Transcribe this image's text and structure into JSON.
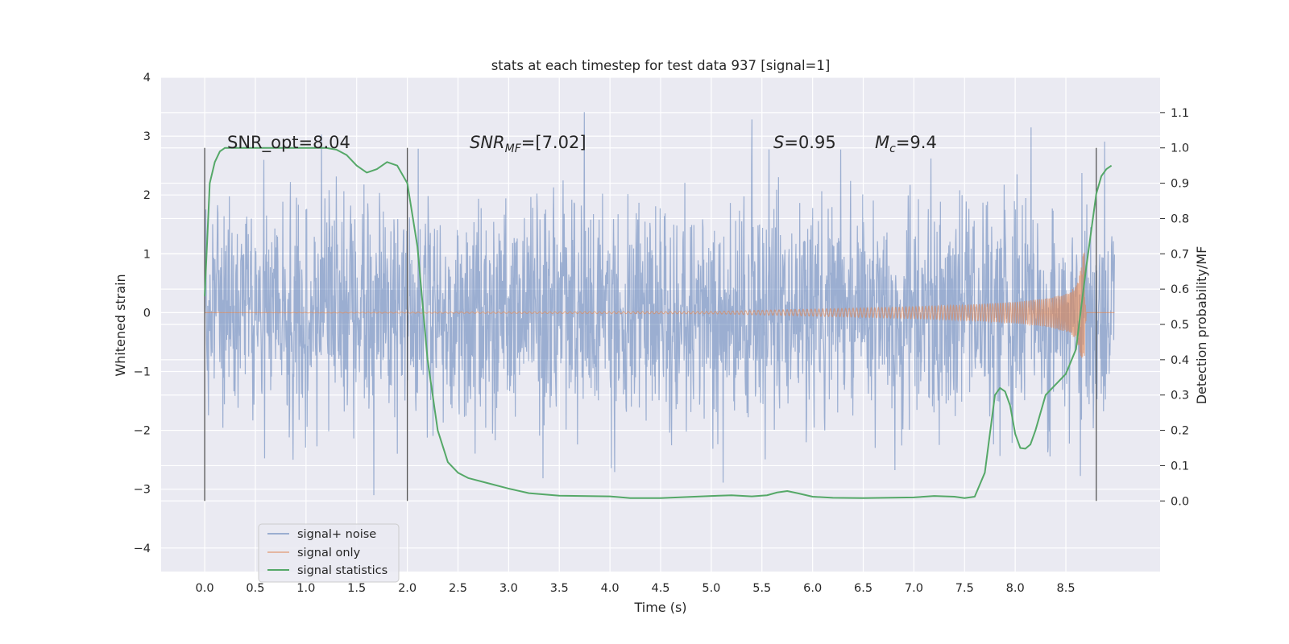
{
  "chart_data": {
    "type": "line",
    "title": "stats at each timestep for test data 937 [signal=1]",
    "xlabel": "Time (s)",
    "ylabel_left": "Whitened strain",
    "ylabel_right": "Detection probability/MF",
    "xlim": [
      -0.43,
      9.43
    ],
    "ylim_left": [
      -4.4,
      4.0
    ],
    "ylim_right": [
      -0.2,
      1.2
    ],
    "x_ticks": [
      "0.0",
      "0.5",
      "1.0",
      "1.5",
      "2.0",
      "2.5",
      "3.0",
      "3.5",
      "4.0",
      "4.5",
      "5.0",
      "5.5",
      "6.0",
      "6.5",
      "7.0",
      "7.5",
      "8.0",
      "8.5"
    ],
    "y_ticks_left": [
      "−4",
      "−3",
      "−2",
      "−1",
      "0",
      "1",
      "2",
      "3",
      "4"
    ],
    "y_ticks_right": [
      "0.0",
      "0.1",
      "0.2",
      "0.3",
      "0.4",
      "0.5",
      "0.6",
      "0.7",
      "0.8",
      "0.9",
      "1.0",
      "1.1"
    ],
    "grid": true,
    "annotations": {
      "snr_opt": "SNR_opt=8.04",
      "snr_mf_base": "SNR",
      "snr_mf_sub": "MF",
      "snr_mf_rest": "=[7.02]",
      "s_sym": "S",
      "s_rest": "=0.95",
      "mc_base": "M",
      "mc_sub": "c",
      "mc_rest": "=9.4"
    },
    "vlines": [
      0.0,
      2.0,
      8.8
    ],
    "legend": {
      "location": "lower left",
      "entries": [
        "signal+ noise",
        "signal only",
        "signal statistics"
      ]
    },
    "series": [
      {
        "name": "signal+ noise",
        "axis": "left",
        "color": "#4c72b0",
        "description_range": [
          -4.0,
          3.6
        ],
        "t_range": [
          0.0,
          8.98
        ]
      },
      {
        "name": "signal only",
        "axis": "left",
        "color": "#dd8452",
        "t": [
          0.0,
          5.0,
          6.0,
          7.0,
          7.5,
          8.0,
          8.3,
          8.5,
          8.6,
          8.65,
          8.68,
          8.7,
          8.98
        ],
        "envelope": [
          0.0,
          0.02,
          0.06,
          0.1,
          0.13,
          0.18,
          0.24,
          0.32,
          0.45,
          0.75,
          1.1,
          0.0,
          0.0
        ]
      },
      {
        "name": "signal statistics",
        "axis": "right",
        "color": "#55a868",
        "x": [
          0.0,
          0.05,
          0.1,
          0.15,
          0.2,
          0.3,
          0.5,
          0.8,
          1.0,
          1.2,
          1.3,
          1.4,
          1.5,
          1.6,
          1.7,
          1.8,
          1.9,
          2.0,
          2.1,
          2.2,
          2.3,
          2.4,
          2.5,
          2.6,
          2.8,
          3.0,
          3.2,
          3.5,
          4.0,
          4.2,
          4.5,
          5.0,
          5.2,
          5.4,
          5.55,
          5.65,
          5.75,
          5.85,
          6.0,
          6.2,
          6.5,
          7.0,
          7.2,
          7.4,
          7.5,
          7.6,
          7.7,
          7.8,
          7.85,
          7.9,
          7.95,
          8.0,
          8.05,
          8.1,
          8.15,
          8.2,
          8.3,
          8.4,
          8.5,
          8.6,
          8.7,
          8.8,
          8.85,
          8.9,
          8.95
        ],
        "y": [
          0.58,
          0.9,
          0.96,
          0.99,
          1.0,
          1.0,
          1.0,
          1.0,
          1.0,
          1.0,
          0.995,
          0.98,
          0.95,
          0.93,
          0.94,
          0.96,
          0.95,
          0.9,
          0.72,
          0.4,
          0.2,
          0.11,
          0.08,
          0.065,
          0.05,
          0.035,
          0.022,
          0.015,
          0.013,
          0.008,
          0.008,
          0.014,
          0.016,
          0.013,
          0.016,
          0.024,
          0.028,
          0.022,
          0.012,
          0.009,
          0.008,
          0.01,
          0.014,
          0.012,
          0.008,
          0.012,
          0.08,
          0.3,
          0.32,
          0.31,
          0.27,
          0.19,
          0.15,
          0.148,
          0.16,
          0.2,
          0.3,
          0.33,
          0.36,
          0.43,
          0.66,
          0.87,
          0.92,
          0.94,
          0.95
        ]
      }
    ]
  }
}
